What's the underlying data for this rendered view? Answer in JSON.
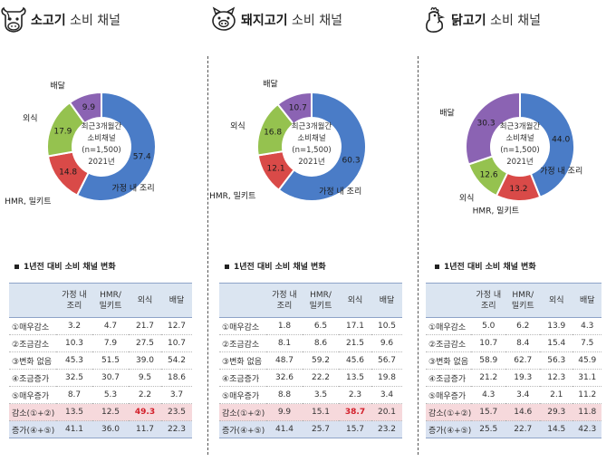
{
  "chart_data": [
    {
      "type": "pie",
      "title": "소고기 소비 채널",
      "center_label": [
        "최근3개월간",
        "소비채널",
        "(n=1,500)",
        "2021년"
      ],
      "categories": [
        "가정 내 조리",
        "HMR, 밀키트",
        "외식",
        "배달"
      ],
      "values": [
        57.4,
        14.8,
        17.9,
        9.9
      ],
      "colors": [
        "#4a7cc7",
        "#d94a48",
        "#95c24f",
        "#8b63b3"
      ],
      "table": {
        "title": "1년전 대비 소비 채널 변화",
        "headers": [
          [
            "가정 내",
            "조리"
          ],
          [
            "HMR/",
            "밀키트"
          ],
          [
            "외식"
          ],
          [
            "배달"
          ]
        ],
        "rows": [
          {
            "label": "①매우감소",
            "values": [
              "3.2",
              "4.7",
              "21.7",
              "12.7"
            ]
          },
          {
            "label": "②조금감소",
            "values": [
              "10.3",
              "7.9",
              "27.5",
              "10.7"
            ]
          },
          {
            "label": "③변화 없음",
            "values": [
              "45.3",
              "51.5",
              "39.0",
              "54.2"
            ]
          },
          {
            "label": "④조금증가",
            "values": [
              "32.5",
              "30.7",
              "9.5",
              "18.6"
            ]
          },
          {
            "label": "⑤매우증가",
            "values": [
              "8.7",
              "5.3",
              "2.2",
              "3.7"
            ]
          },
          {
            "label": "감소(①+②)",
            "values": [
              "13.5",
              "12.5",
              "49.3",
              "23.5"
            ]
          },
          {
            "label": "증가(④+⑤)",
            "values": [
              "41.1",
              "36.0",
              "11.7",
              "22.3"
            ]
          }
        ]
      }
    },
    {
      "type": "pie",
      "title": "돼지고기 소비 채널",
      "center_label": [
        "최근3개월간",
        "소비채널",
        "(n=1,500)",
        "2021년"
      ],
      "categories": [
        "가정 내 조리",
        "HMR, 밀키트",
        "외식",
        "배달"
      ],
      "values": [
        60.3,
        12.1,
        16.8,
        10.7
      ],
      "colors": [
        "#4a7cc7",
        "#d94a48",
        "#95c24f",
        "#8b63b3"
      ],
      "table": {
        "title": "1년전 대비 소비 채널 변화",
        "headers": [
          [
            "가정 내",
            "조리"
          ],
          [
            "HMR/",
            "밀키트"
          ],
          [
            "외식"
          ],
          [
            "배달"
          ]
        ],
        "rows": [
          {
            "label": "①매우감소",
            "values": [
              "1.8",
              "6.5",
              "17.1",
              "10.5"
            ]
          },
          {
            "label": "②조금감소",
            "values": [
              "8.1",
              "8.6",
              "21.5",
              "9.6"
            ]
          },
          {
            "label": "③변화 없음",
            "values": [
              "48.7",
              "59.2",
              "45.6",
              "56.7"
            ]
          },
          {
            "label": "④조금증가",
            "values": [
              "32.6",
              "22.2",
              "13.5",
              "19.8"
            ]
          },
          {
            "label": "⑤매우증가",
            "values": [
              "8.8",
              "3.5",
              "2.3",
              "3.4"
            ]
          },
          {
            "label": "감소(①+②)",
            "values": [
              "9.9",
              "15.1",
              "38.7",
              "20.1"
            ]
          },
          {
            "label": "증가(④+⑤)",
            "values": [
              "41.4",
              "25.7",
              "15.7",
              "23.2"
            ]
          }
        ]
      }
    },
    {
      "type": "pie",
      "title": "닭고기 소비 채널",
      "center_label": [
        "최근3개월간",
        "소비채널",
        "(n=1,500)",
        "2021년"
      ],
      "categories": [
        "가정 내 조리",
        "HMR, 밀키트",
        "외식",
        "배달"
      ],
      "values": [
        44.0,
        13.2,
        12.6,
        30.3
      ],
      "colors": [
        "#4a7cc7",
        "#d94a48",
        "#95c24f",
        "#8b63b3"
      ],
      "table": {
        "title": "1년전 대비 소비 채널 변화",
        "headers": [
          [
            "가정 내",
            "조리"
          ],
          [
            "HMR/",
            "밀키트"
          ],
          [
            "외식"
          ],
          [
            "배달"
          ]
        ],
        "rows": [
          {
            "label": "①매우감소",
            "values": [
              "5.0",
              "6.2",
              "13.9",
              "4.3"
            ]
          },
          {
            "label": "②조금감소",
            "values": [
              "10.7",
              "8.4",
              "15.4",
              "7.5"
            ]
          },
          {
            "label": "③변화 없음",
            "values": [
              "58.9",
              "62.7",
              "56.3",
              "45.9"
            ]
          },
          {
            "label": "④조금증가",
            "values": [
              "21.2",
              "19.3",
              "12.3",
              "31.1"
            ]
          },
          {
            "label": "⑤매우증가",
            "values": [
              "4.3",
              "3.4",
              "2.1",
              "11.2"
            ]
          },
          {
            "label": "감소(①+②)",
            "values": [
              "15.7",
              "14.6",
              "29.3",
              "11.8"
            ]
          },
          {
            "label": "증가(④+⑤)",
            "values": [
              "25.5",
              "22.7",
              "14.5",
              "42.3"
            ]
          }
        ]
      }
    }
  ],
  "panels": [
    {
      "title_main": "소고기",
      "title_sub": " 소비 채널",
      "icon": "cow-icon"
    },
    {
      "title_main": "돼지고기",
      "title_sub": " 소비 채널",
      "icon": "pig-icon"
    },
    {
      "title_main": "닭고기",
      "title_sub": " 소비 채널",
      "icon": "chicken-icon"
    }
  ],
  "highlight_cells": [
    {
      "panel": 0,
      "row": 5,
      "col": 2,
      "color": "#d21f2a"
    },
    {
      "panel": 1,
      "row": 5,
      "col": 2,
      "color": "#d21f2a"
    }
  ]
}
